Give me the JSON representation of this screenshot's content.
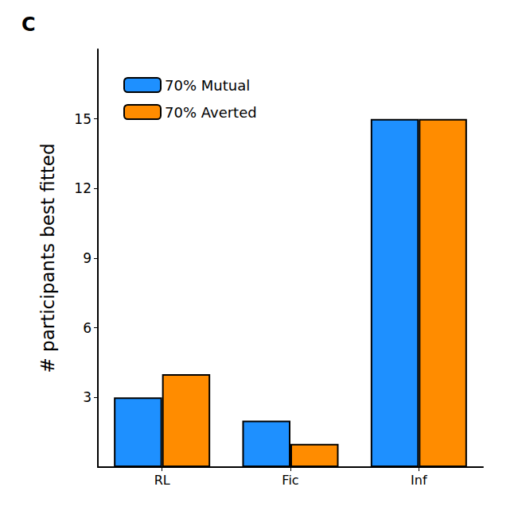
{
  "chart_data": {
    "type": "bar",
    "title": "C",
    "y_label": "# participants best fitted",
    "categories": [
      "RL",
      "Fic",
      "Inf"
    ],
    "series": [
      {
        "name": "70% Mutual",
        "color": "#1e90ff",
        "values": [
          3,
          2,
          15
        ]
      },
      {
        "name": "70% Averted",
        "color": "#ff8c00",
        "values": [
          4,
          1,
          15
        ]
      }
    ],
    "ylim": [
      0,
      18
    ],
    "yticks": [
      3,
      6,
      9,
      12,
      15
    ],
    "grid": false,
    "legend": "upper left"
  }
}
